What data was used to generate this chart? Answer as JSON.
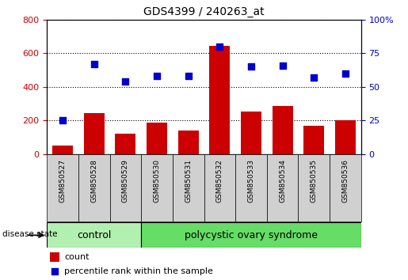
{
  "title": "GDS4399 / 240263_at",
  "samples": [
    "GSM850527",
    "GSM850528",
    "GSM850529",
    "GSM850530",
    "GSM850531",
    "GSM850532",
    "GSM850533",
    "GSM850534",
    "GSM850535",
    "GSM850536"
  ],
  "counts": [
    50,
    245,
    120,
    185,
    140,
    645,
    255,
    285,
    170,
    200
  ],
  "percentiles": [
    25,
    67,
    54,
    58,
    58,
    80,
    65,
    66,
    57,
    60
  ],
  "control_count": 3,
  "pcos_count": 7,
  "bar_color": "#cc0000",
  "dot_color": "#0000cc",
  "ylim_left": [
    0,
    800
  ],
  "ylim_right": [
    0,
    100
  ],
  "yticks_left": [
    0,
    200,
    400,
    600,
    800
  ],
  "yticks_right": [
    0,
    25,
    50,
    75,
    100
  ],
  "title_str": "GDS4399 / 240263_at",
  "legend_count": "count",
  "legend_percentile": "percentile rank within the sample",
  "disease_state_label": "disease state",
  "control_label": "control",
  "pcos_label": "polycystic ovary syndrome",
  "control_color": "#b2f0b2",
  "pcos_color": "#66dd66",
  "sample_box_color": "#d0d0d0",
  "grid_dotted_color": "#000000"
}
